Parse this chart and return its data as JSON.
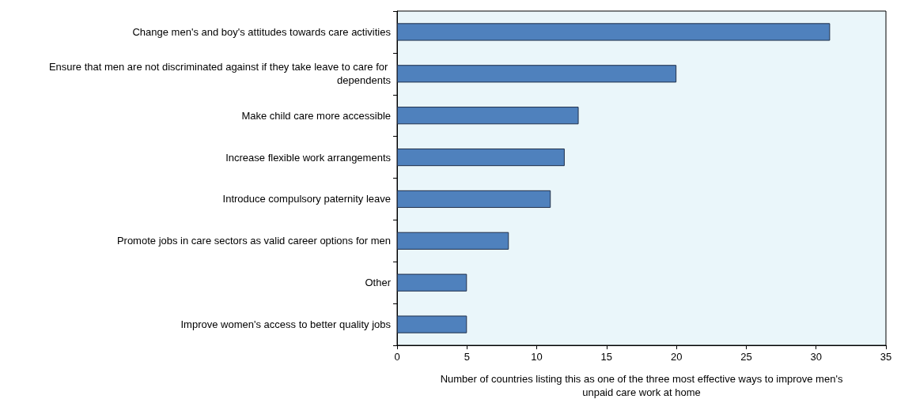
{
  "chart_data": {
    "type": "bar",
    "orientation": "horizontal",
    "categories": [
      "Change men's and boy's attitudes towards care activities",
      "Ensure that men are not discriminated against if they take leave to care for dependents",
      "Make child care more accessible",
      "Increase flexible work arrangements",
      "Introduce compulsory paternity leave",
      "Promote jobs in care sectors as valid career options for men",
      "Other",
      "Improve women's access to better quality jobs"
    ],
    "values": [
      31,
      20,
      13,
      12,
      11,
      8,
      5,
      5
    ],
    "color": "#4f81bd",
    "xlabel": "Number of countries listing this as one of the three most effective ways to improve men's unpaid care work at home",
    "xlim": [
      0,
      35
    ],
    "xticks": [
      0,
      5,
      10,
      15,
      20,
      25,
      30,
      35
    ],
    "grid": false
  }
}
